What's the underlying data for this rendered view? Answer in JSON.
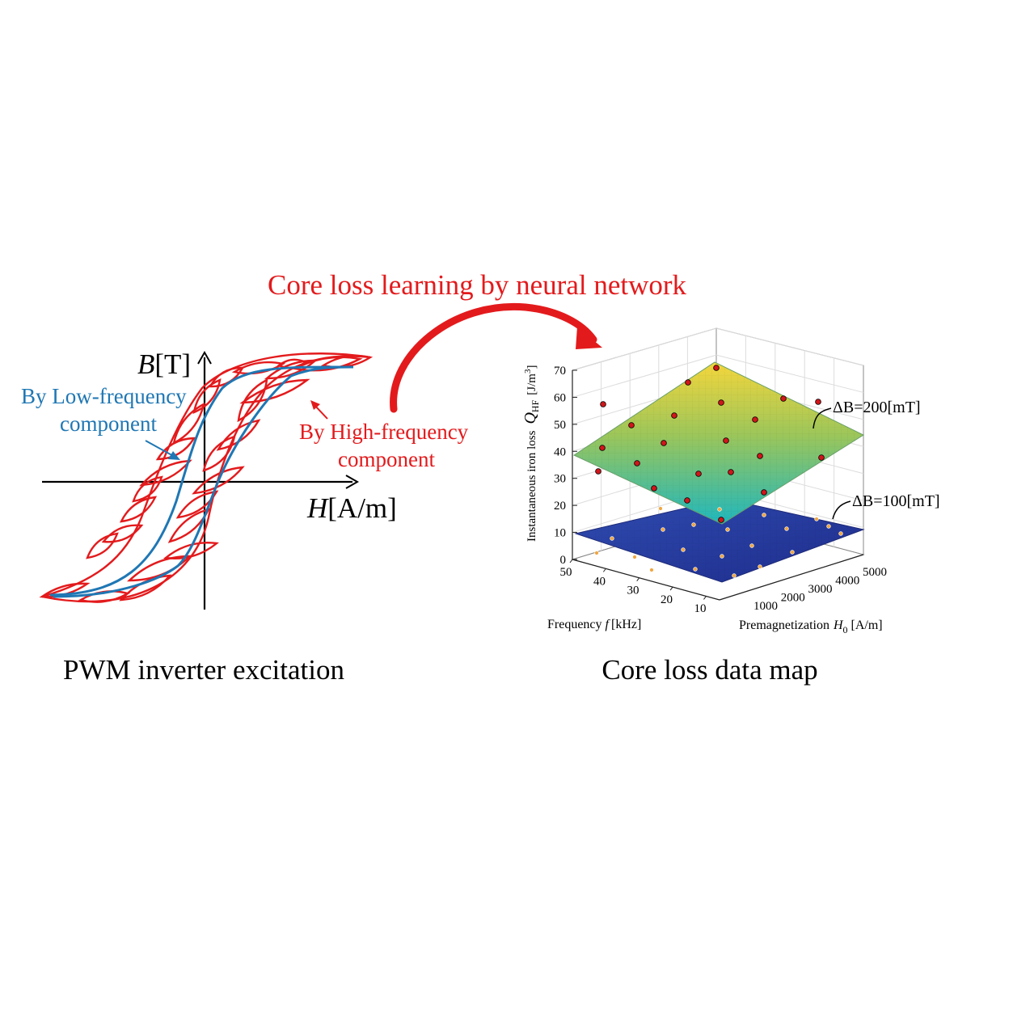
{
  "title": "Core loss learning by neural network",
  "left_panel": {
    "y_axis_label_var": "B",
    "y_axis_label_unit": "[T]",
    "x_axis_label_var": "H",
    "x_axis_label_unit": "[A/m]",
    "annotation_low_line1": "By Low-frequency",
    "annotation_low_line2": "component",
    "annotation_high_line1": "By High-frequency",
    "annotation_high_line2": "component",
    "caption": "PWM inverter excitation",
    "colors": {
      "low_frequency": "#1f77b4",
      "high_frequency": "#e31a1c",
      "axis": "#000000"
    }
  },
  "right_panel": {
    "caption": "Core loss data map",
    "z_axis_label_prefix": "Instantaneous iron loss",
    "z_axis_label_symbol": "Q",
    "z_axis_label_subscript": "HF",
    "z_axis_label_unit": "[J/m",
    "z_axis_label_unit_sup": "3",
    "z_axis_label_unit_end": "]",
    "x_axis_label": "Frequency",
    "x_axis_label_symbol": "f",
    "x_axis_label_unit": "[kHz]",
    "y_axis_label": "Premagnetization",
    "y_axis_label_symbol": "H",
    "y_axis_label_subscript": "0",
    "y_axis_label_unit": "[A/m]",
    "z_ticks": [
      "0",
      "10",
      "20",
      "30",
      "40",
      "50",
      "60",
      "70"
    ],
    "f_ticks": [
      "50",
      "40",
      "30",
      "20",
      "10"
    ],
    "h_ticks": [
      "1000",
      "2000",
      "3000",
      "4000",
      "5000"
    ],
    "surface_labels": [
      "ΔB=200[mT]",
      "ΔB=100[mT]"
    ],
    "colors": {
      "upper_surface_top": "#f4d63c",
      "upper_surface_bottom": "#22b8b8",
      "lower_surface": "#2a3a9e",
      "points_upper": "#d0161b",
      "points_lower": "#f2a640"
    }
  }
}
